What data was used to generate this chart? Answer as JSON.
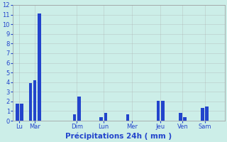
{
  "bar_positions": [
    1,
    2,
    4,
    5,
    6,
    14,
    15,
    20,
    21,
    26,
    28,
    33,
    34,
    38,
    39,
    43,
    44
  ],
  "bar_values": [
    1.8,
    1.8,
    3.9,
    4.2,
    11.1,
    0.7,
    2.5,
    0.4,
    0.8,
    0.7,
    0.0,
    2.1,
    2.1,
    0.8,
    0.4,
    1.3,
    1.5
  ],
  "bar_width": 0.7,
  "xlim": [
    0,
    48
  ],
  "ylim": [
    0,
    12
  ],
  "yticks": [
    0,
    1,
    2,
    3,
    4,
    5,
    6,
    7,
    8,
    9,
    10,
    11,
    12
  ],
  "xtick_positions": [
    1.5,
    5.0,
    14.5,
    20.5,
    27.0,
    33.5,
    38.5,
    43.5
  ],
  "xtick_labels": [
    "Lu",
    "Mar",
    "Dim",
    "Lun",
    "Mer",
    "Jeu",
    "Ven",
    "Sam"
  ],
  "xlabel": "Précipitations 24h ( mm )",
  "bar_color": "#2244cc",
  "background_color": "#cceee8",
  "grid_color": "#aaaaaa",
  "text_color": "#2244cc",
  "tick_fontsize": 6.0,
  "xlabel_fontsize": 7.5
}
